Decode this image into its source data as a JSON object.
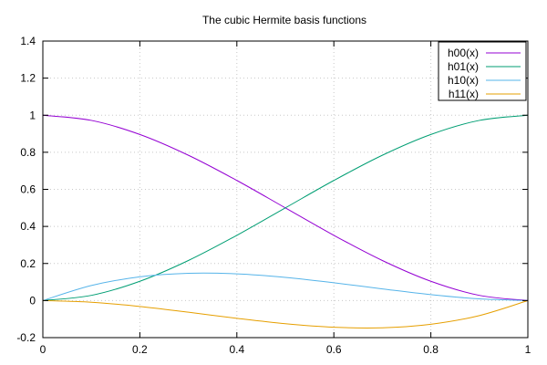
{
  "chart_data": {
    "type": "line",
    "title": "The cubic Hermite basis functions",
    "xlabel": "",
    "ylabel": "",
    "xlim": [
      0,
      1
    ],
    "ylim": [
      -0.2,
      1.4
    ],
    "xticks": [
      0,
      0.2,
      0.4,
      0.6,
      0.8,
      1
    ],
    "xtick_labels": [
      "0",
      "0.2",
      "0.4",
      "0.6",
      "0.8",
      "1"
    ],
    "yticks": [
      -0.2,
      0,
      0.2,
      0.4,
      0.6,
      0.8,
      1,
      1.2,
      1.4
    ],
    "ytick_labels": [
      "-0.2",
      "0",
      "0.2",
      "0.4",
      "0.6",
      "0.8",
      "1",
      "1.2",
      "1.4"
    ],
    "grid": true,
    "legend_position": "top-right",
    "x": [
      0,
      0.1,
      0.2,
      0.3,
      0.4,
      0.5,
      0.6,
      0.7,
      0.8,
      0.9,
      1
    ],
    "series": [
      {
        "name": "h00(x)",
        "color": "#9400d3",
        "values": [
          1,
          0.972,
          0.896,
          0.784,
          0.648,
          0.5,
          0.352,
          0.216,
          0.104,
          0.028,
          0
        ]
      },
      {
        "name": "h01(x)",
        "color": "#009e73",
        "values": [
          0,
          0.028,
          0.104,
          0.216,
          0.352,
          0.5,
          0.648,
          0.784,
          0.896,
          0.972,
          1
        ]
      },
      {
        "name": "h10(x)",
        "color": "#56b4e9",
        "values": [
          0,
          0.081,
          0.128,
          0.147,
          0.144,
          0.125,
          0.096,
          0.063,
          0.032,
          0.009,
          0
        ]
      },
      {
        "name": "h11(x)",
        "color": "#e69f00",
        "values": [
          0,
          -0.009,
          -0.032,
          -0.063,
          -0.096,
          -0.125,
          -0.144,
          -0.147,
          -0.128,
          -0.081,
          0
        ]
      }
    ]
  }
}
